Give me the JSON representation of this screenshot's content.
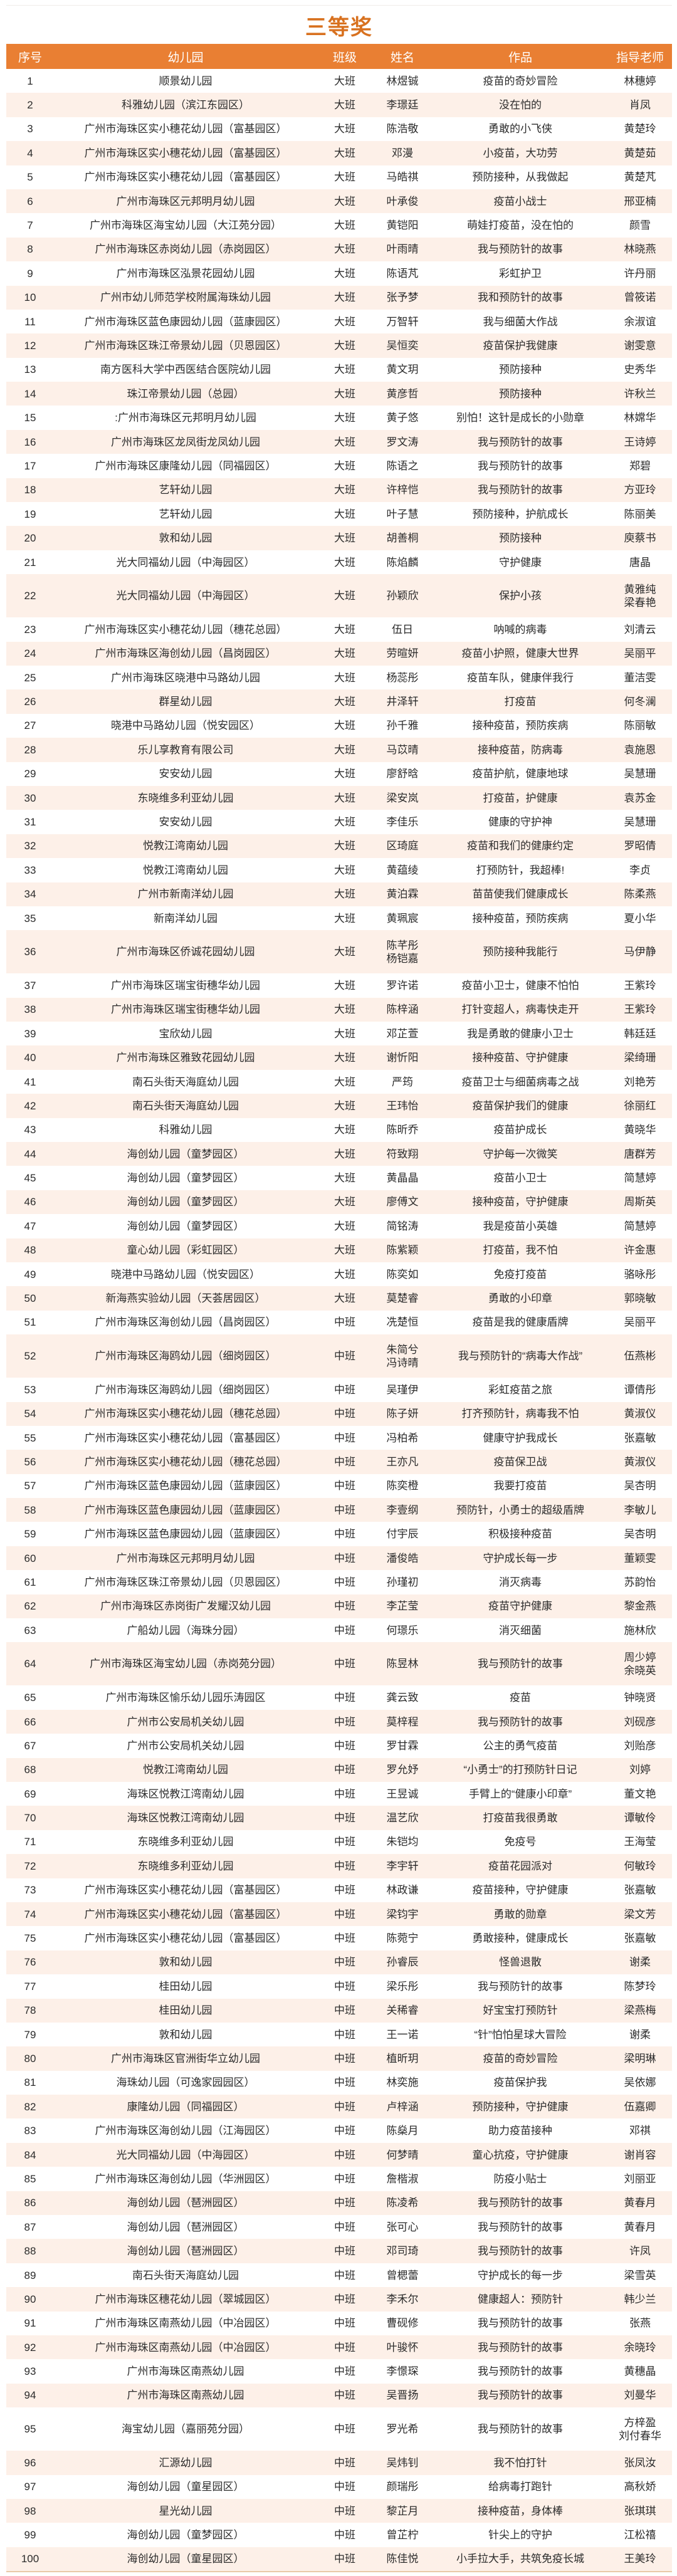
{
  "title": "三等奖",
  "colors": {
    "accent": "#e97f33",
    "title": "#d8711f",
    "stripe": "#fdf0e8"
  },
  "headers": [
    "序号",
    "幼儿园",
    "班级",
    "姓名",
    "作品",
    "指导老师"
  ],
  "rows": [
    [
      "1",
      "顺景幼儿园",
      "大班",
      "林煜铖",
      "疫苗的奇妙冒险",
      "林穗婷"
    ],
    [
      "2",
      "科雅幼儿园（滨江东园区）",
      "大班",
      "李璟廷",
      "没在怕的",
      "肖凤"
    ],
    [
      "3",
      "广州市海珠区实小穗花幼儿园（富基园区）",
      "大班",
      "陈浩敬",
      "勇敢的小飞侠",
      "黄楚玲"
    ],
    [
      "4",
      "广州市海珠区实小穗花幼儿园（富基园区）",
      "大班",
      "邓漫",
      "小疫苗，大功劳",
      "黄楚茹"
    ],
    [
      "5",
      "广州市海珠区实小穗花幼儿园（富基园区）",
      "大班",
      "马皓祺",
      "预防接种，从我做起",
      "黄楚芃"
    ],
    [
      "6",
      "广州市海珠区元邦明月幼儿园",
      "大班",
      "叶承俊",
      "疫苗小战士",
      "邢亚楠"
    ],
    [
      "7",
      "广州市海珠区海宝幼儿园（大江苑分园）",
      "大班",
      "黄铠阳",
      "萌娃打疫苗，没在怕的",
      "颜雪"
    ],
    [
      "8",
      "广州市海珠区赤岗幼儿园（赤岗园区）",
      "大班",
      "叶雨晴",
      "我与预防针的故事",
      "林晓燕"
    ],
    [
      "9",
      "广州市海珠区泓景花园幼儿园",
      "大班",
      "陈语芃",
      "彩虹护卫",
      "许丹丽"
    ],
    [
      "10",
      "广州市幼儿师范学校附属海珠幼儿园",
      "大班",
      "张予梦",
      "我和预防针的故事",
      "曾筱诺"
    ],
    [
      "11",
      "广州市海珠区蓝色康园幼儿园（蓝康园区）",
      "大班",
      "万智轩",
      "我与细菌大作战",
      "余淑谊"
    ],
    [
      "12",
      "广州市海珠区珠江帝景幼儿园（贝恩园区）",
      "大班",
      "吴恒奕",
      "疫苗保护我健康",
      "谢雯意"
    ],
    [
      "13",
      "南方医科大学中西医结合医院幼儿园",
      "大班",
      "黄文玥",
      "预防接种",
      "史秀华"
    ],
    [
      "14",
      "珠江帝景幼儿园（总园）",
      "大班",
      "黄彦哲",
      "预防接种",
      "许秋兰"
    ],
    [
      "15",
      ":广州市海珠区元邦明月幼儿园",
      "大班",
      "黄子悠",
      "别怕！这针是成长的小勋章",
      "林嫦华"
    ],
    [
      "16",
      "广州市海珠区龙凤街龙凤幼儿园",
      "大班",
      "罗文涛",
      "我与预防针的故事",
      "王诗婷"
    ],
    [
      "17",
      "广州市海珠区康隆幼儿园（同福园区）",
      "大班",
      "陈语之",
      "我与预防针的故事",
      "郑碧"
    ],
    [
      "18",
      "艺轩幼儿园",
      "大班",
      "许梓恺",
      "我与预防针的故事",
      "方亚玲"
    ],
    [
      "19",
      "艺轩幼儿园",
      "大班",
      "叶子慧",
      "预防接种，护航成长",
      "陈丽美"
    ],
    [
      "20",
      "敦和幼儿园",
      "大班",
      "胡善桐",
      "预防接种",
      "庾蔡书"
    ],
    [
      "21",
      "光大同福幼儿园（中海园区）",
      "大班",
      "陈焰麟",
      "守护健康",
      "唐晶"
    ],
    [
      "22",
      "光大同福幼儿园（中海园区）",
      "大班",
      "孙颖欣",
      "保护小孩",
      "黄雅纯\n梁春艳"
    ],
    [
      "23",
      "广州市海珠区实小穗花幼儿园（穗花总园）",
      "大班",
      "伍日",
      "呐喊的病毒",
      "刘清云"
    ],
    [
      "24",
      "广州市海珠区海创幼儿园（昌岗园区）",
      "大班",
      "劳暄妍",
      "疫苗小护照，健康大世界",
      "吴丽平"
    ],
    [
      "25",
      "广州市海珠区晓港中马路幼儿园",
      "大班",
      "杨蕊彤",
      "疫苗车队，健康伴我行",
      "董洁雯"
    ],
    [
      "26",
      "群星幼儿园",
      "大班",
      "井泽轩",
      "打疫苗",
      "何冬澜"
    ],
    [
      "27",
      "晓港中马路幼儿园（悦安园区）",
      "大班",
      "孙千雅",
      "接种疫苗，预防疾病",
      "陈丽敏"
    ],
    [
      "28",
      "乐儿享教育有限公司",
      "大班",
      "马苡晴",
      "接种疫苗，防病毒",
      "袁施恩"
    ],
    [
      "29",
      "安安幼儿园",
      "大班",
      "廖舒晗",
      "疫苗护航，健康地球",
      "吴慧珊"
    ],
    [
      "30",
      "东晓维多利亚幼儿园",
      "大班",
      "梁安岚",
      "打疫苗，护健康",
      "袁苏金"
    ],
    [
      "31",
      "安安幼儿园",
      "大班",
      "李佳乐",
      "健康的守护神",
      "吴慧珊"
    ],
    [
      "32",
      "悦教江湾南幼儿园",
      "大班",
      "区琦庭",
      "疫苗和我们的健康约定",
      "罗昭倩"
    ],
    [
      "33",
      "悦教江湾南幼儿园",
      "大班",
      "黄蕴绫",
      "打预防针，我超棒!",
      "李贞"
    ],
    [
      "34",
      "广州市新南洋幼儿园",
      "大班",
      "黄泊霖",
      "苗苗使我们健康成长",
      "陈柔燕"
    ],
    [
      "35",
      "新南洋幼儿园",
      "大班",
      "黄珮宸",
      "接种疫苗，预防疾病",
      "夏小华"
    ],
    [
      "36",
      "广州市海珠区侨诚花园幼儿园",
      "大班",
      "陈芊彤\n杨铠嘉",
      "预防接种我能行",
      "马伊静"
    ],
    [
      "37",
      "广州市海珠区瑞宝街穗华幼儿园",
      "大班",
      "罗许诺",
      "疫苗小卫士，健康不怕怕",
      "王紫玲"
    ],
    [
      "38",
      "广州市海珠区瑞宝街穗华幼儿园",
      "大班",
      "陈梓涵",
      "打针变超人，病毒快走开",
      "王紫玲"
    ],
    [
      "39",
      "宝欣幼儿园",
      "大班",
      "邓芷萱",
      "我是勇敢的健康小卫士",
      "韩廷廷"
    ],
    [
      "40",
      "广州市海珠区雅致花园幼儿园",
      "大班",
      "谢忻阳",
      "接种疫苗、守护健康",
      "梁绮珊"
    ],
    [
      "41",
      "南石头街天海庭幼儿园",
      "大班",
      "严筠",
      "疫苗卫士与细菌病毒之战",
      "刘艳芳"
    ],
    [
      "42",
      "南石头街天海庭幼儿园",
      "大班",
      "王玮怡",
      "疫苗保护我们的健康",
      "徐丽红"
    ],
    [
      "43",
      "科雅幼儿园",
      "大班",
      "陈昕乔",
      "疫苗护成长",
      "黄晓华"
    ],
    [
      "44",
      "海创幼儿园（童梦园区）",
      "大班",
      "符致翔",
      "守护每一次微笑",
      "唐群芳"
    ],
    [
      "45",
      "海创幼儿园（童梦园区）",
      "大班",
      "黄晶晶",
      "疫苗小卫士",
      "简慧婷"
    ],
    [
      "46",
      "海创幼儿园（童梦园区）",
      "大班",
      "廖傅文",
      "接种疫苗，守护健康",
      "周斯英"
    ],
    [
      "47",
      "海创幼儿园（童梦园区）",
      "大班",
      "简铭涛",
      "我是疫苗小英雄",
      "简慧婷"
    ],
    [
      "48",
      "童心幼儿园（彩虹园区）",
      "大班",
      "陈紫颖",
      "打疫苗，我不怕",
      "许金惠"
    ],
    [
      "49",
      "晓港中马路幼儿园（悦安园区）",
      "大班",
      "陈奕如",
      "免疫打疫苗",
      "骆咏彤"
    ],
    [
      "50",
      "新海燕实验幼儿园（天荟居园区）",
      "大班",
      "莫楚睿",
      "勇敢的小印章",
      "郭晓敏"
    ],
    [
      "51",
      "广州市海珠区海创幼儿园（昌岗园区）",
      "中班",
      "冼楚恒",
      "疫苗是我的健康盾牌",
      "吴丽平"
    ],
    [
      "52",
      "广州市海珠区海鸥幼儿园（细岗园区）",
      "中班",
      "朱简兮\n冯诗晴",
      "我与预防针的“病毒大作战”",
      "伍燕彬"
    ],
    [
      "53",
      "广州市海珠区海鸥幼儿园（细岗园区）",
      "中班",
      "吴瑾伊",
      "彩虹疫苗之旅",
      "谭倩彤"
    ],
    [
      "54",
      "广州市海珠区实小穗花幼儿园（穗花总园）",
      "中班",
      "陈子妍",
      "打齐预防针，病毒我不怕",
      "黄淑仪"
    ],
    [
      "55",
      "广州市海珠区实小穗花幼儿园（富基园区）",
      "中班",
      "冯柏希",
      "健康守护我成长",
      "张嘉敏"
    ],
    [
      "56",
      "广州市海珠区实小穗花幼儿园（穗花总园）",
      "中班",
      "王亦凡",
      "疫苗保卫战",
      "黄淑仪"
    ],
    [
      "57",
      "广州市海珠区蓝色康园幼儿园（蓝康园区）",
      "中班",
      "陈奕橙",
      "我要打疫苗",
      "吴杏明"
    ],
    [
      "58",
      "广州市海珠区蓝色康园幼儿园（蓝康园区）",
      "中班",
      "李壹纲",
      "预防针，小勇士的超级盾牌",
      "李敏儿"
    ],
    [
      "59",
      "广州市海珠区蓝色康园幼儿园（蓝康园区）",
      "中班",
      "付宇辰",
      "积极接种疫苗",
      "吴杏明"
    ],
    [
      "60",
      "广州市海珠区元邦明月幼儿园",
      "中班",
      "潘俊皓",
      "守护成长每一步",
      "董颖雯"
    ],
    [
      "61",
      "广州市海珠区珠江帝景幼儿园（贝恩园区）",
      "中班",
      "孙瑾初",
      "消灭病毒",
      "苏韵怡"
    ],
    [
      "62",
      "广州市海珠区赤岗街广发耀汉幼儿园",
      "中班",
      "李芷莹",
      "疫苗守护健康",
      "黎金燕"
    ],
    [
      "63",
      "广船幼儿园（海珠分园）",
      "中班",
      "何璟乐",
      "消灭细菌",
      "施林欣"
    ],
    [
      "64",
      "广州市海珠区海宝幼儿园（赤岗苑分园）",
      "中班",
      "陈昱林",
      "我与预防针的故事",
      "周少婷\n余晓英"
    ],
    [
      "65",
      "广州市海珠区愉乐幼儿园乐涛园区",
      "中班",
      "龚云致",
      "疫苗",
      "钟晓贤"
    ],
    [
      "66",
      "广州市公安局机关幼儿园",
      "中班",
      "莫梓程",
      "我与预防针的故事",
      "刘砚彦"
    ],
    [
      "67",
      "广州市公安局机关幼儿园",
      "中班",
      "罗甘霖",
      "公主的勇气疫苗",
      "刘贻彦"
    ],
    [
      "68",
      "悦教江湾南幼儿园",
      "中班",
      "罗允妤",
      "“小勇士”的打预防针日记",
      "刘婷"
    ],
    [
      "69",
      "海珠区悦教江湾南幼儿园",
      "中班",
      "王昱诚",
      "手臂上的“健康小印章”",
      "董文艳"
    ],
    [
      "70",
      "海珠区悦教江湾南幼儿园",
      "中班",
      "温艺欣",
      "打疫苗我很勇敢",
      "谭敏伶"
    ],
    [
      "71",
      "东晓维多利亚幼儿园",
      "中班",
      "朱铠均",
      "免疫号",
      "王海莹"
    ],
    [
      "72",
      "东晓维多利亚幼儿园",
      "中班",
      "李宇轩",
      "疫苗花园派对",
      "何敏玲"
    ],
    [
      "73",
      "广州市海珠区实小穗花幼儿园（富基园区）",
      "中班",
      "林政谦",
      "疫苗接种，守护健康",
      "张嘉敏"
    ],
    [
      "74",
      "广州市海珠区实小穗花幼儿园（富基园区）",
      "中班",
      "梁钧宇",
      "勇敢的勋章",
      "梁文芳"
    ],
    [
      "75",
      "广州市海珠区实小穗花幼儿园（富基园区）",
      "中班",
      "陈菀宁",
      "勇敢接种，健康成长",
      "张嘉敏"
    ],
    [
      "76",
      "敦和幼儿园",
      "中班",
      "孙睿辰",
      "怪兽退散",
      "谢柔"
    ],
    [
      "77",
      "桂田幼儿园",
      "中班",
      "梁乐彤",
      "我与预防针的故事",
      "陈梦玲"
    ],
    [
      "78",
      "桂田幼儿园",
      "中班",
      "关稀睿",
      "好宝宝打预防针",
      "梁燕梅"
    ],
    [
      "79",
      "敦和幼儿园",
      "中班",
      "王一诺",
      "“针”怕怕星球大冒险",
      "谢柔"
    ],
    [
      "80",
      "广州市海珠区官洲街华立幼儿园",
      "中班",
      "植昕玥",
      "疫苗的奇妙冒险",
      "梁明琳"
    ],
    [
      "81",
      "海珠幼儿园（可逸家园园区）",
      "中班",
      "林奕施",
      "疫苗保护我",
      "吴依娜"
    ],
    [
      "82",
      "康隆幼儿园（同福园区）",
      "中班",
      "卢梓涵",
      "预防接种，守护健康",
      "伍嘉卿"
    ],
    [
      "83",
      "广州市海珠区海创幼儿园（江海园区）",
      "中班",
      "陈燊月",
      "助力疫苗接种",
      "邓祺"
    ],
    [
      "84",
      "光大同福幼儿园（中海园区）",
      "中班",
      "何梦晴",
      "童心抗疫，守护健康",
      "谢肖容"
    ],
    [
      "85",
      "广州市海珠区海创幼儿园（华洲园区）",
      "中班",
      "詹楷淑",
      "防疫小贴士",
      "刘丽亚"
    ],
    [
      "86",
      "海创幼儿园（琶洲园区）",
      "中班",
      "陈凌希",
      "我与预防针的故事",
      "黄春月"
    ],
    [
      "87",
      "海创幼儿园（琶洲园区）",
      "中班",
      "张可心",
      "我与预防针的故事",
      "黄春月"
    ],
    [
      "88",
      "海创幼儿园（琶洲园区）",
      "中班",
      "邓司琦",
      "我与预防针的故事",
      "许凤"
    ],
    [
      "89",
      "南石头街天海庭幼儿园",
      "中班",
      "曾楒蕾",
      "守护成长的每一步",
      "梁雪英"
    ],
    [
      "90",
      "广州市海珠区穗花幼儿园（翠城园区）",
      "中班",
      "李禾尔",
      "健康超人：预防针",
      "韩少兰"
    ],
    [
      "91",
      "广州市海珠区南燕幼儿园（中冶园区）",
      "中班",
      "曹砚修",
      "我与预防针的故事",
      "张燕"
    ],
    [
      "92",
      "广州市海珠区南燕幼儿园（中冶园区）",
      "中班",
      "叶骏怀",
      "我与预防针的故事",
      "余晓玲"
    ],
    [
      "93",
      "广州市海珠区南燕幼儿园",
      "中班",
      "李憬琛",
      "我与预防针的故事",
      "黄穗晶"
    ],
    [
      "94",
      "广州市海珠区南燕幼儿园",
      "中班",
      "吴晋扬",
      "我与预防针的故事",
      "刘曼华"
    ],
    [
      "95",
      "海宝幼儿园（嘉丽苑分园）",
      "中班",
      "罗光希",
      "我与预防针的故事",
      "方梓盈\n刘付春华"
    ],
    [
      "96",
      "汇源幼儿园",
      "中班",
      "吴炜钊",
      "我不怕打针",
      "张凤汝"
    ],
    [
      "97",
      "海创幼儿园（童星园区）",
      "中班",
      "颜瑞彤",
      "给病毒打跑针",
      "高秋娇"
    ],
    [
      "98",
      "星光幼儿园",
      "中班",
      "黎芷月",
      "接种疫苗，身体棒",
      "张琪琪"
    ],
    [
      "99",
      "海创幼儿园（童梦园区）",
      "中班",
      "曾芷柠",
      "针尖上的守护",
      "江松禧"
    ],
    [
      "100",
      "海创幼儿园（童星园区）",
      "中班",
      "陈佳悦",
      "小手拉大手，共筑免疫长城",
      "王美玲"
    ]
  ]
}
